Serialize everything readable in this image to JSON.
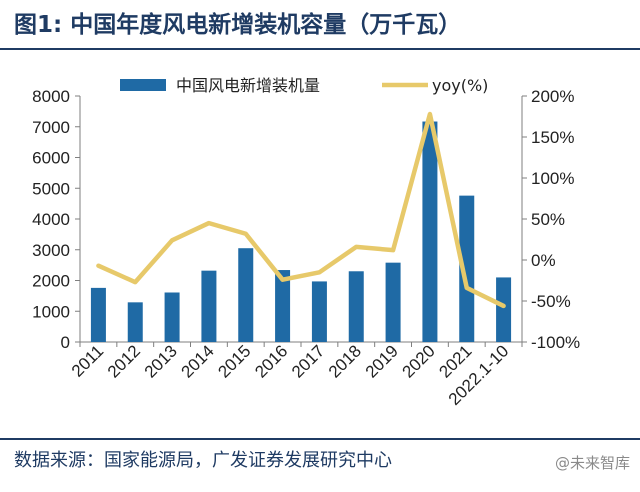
{
  "header": {
    "figure_number": "图1:",
    "title": "中国年度风电新增装机容量（万千瓦）"
  },
  "footer": {
    "source": "数据来源：国家能源局，广发证券发展研究中心",
    "watermark": "@未来智库"
  },
  "chart_data": {
    "type": "bar",
    "categories": [
      "2011",
      "2012",
      "2013",
      "2014",
      "2015",
      "2016",
      "2017",
      "2018",
      "2019",
      "2020",
      "2021",
      "2022.1-10"
    ],
    "series": [
      {
        "name": "中国风电新增装机量",
        "type": "bar",
        "axis": "left",
        "color": "#1f6aa5",
        "values": [
          1760,
          1290,
          1610,
          2320,
          3050,
          2340,
          1970,
          2300,
          2580,
          7170,
          4760,
          2100
        ]
      },
      {
        "name": "yoy(%)",
        "type": "line",
        "axis": "right",
        "color": "#e7c96a",
        "values": [
          -7,
          -27,
          24,
          45,
          32,
          -24,
          -15,
          16,
          12,
          178,
          -34,
          -56
        ]
      }
    ],
    "y_left": {
      "min": 0,
      "max": 8000,
      "ticks": [
        "0",
        "1000",
        "2000",
        "3000",
        "4000",
        "5000",
        "6000",
        "7000",
        "8000"
      ]
    },
    "y_right": {
      "min": -100,
      "max": 200,
      "ticks": [
        "-100%",
        "-50%",
        "0%",
        "50%",
        "100%",
        "150%",
        "200%"
      ]
    },
    "legend_position": "top",
    "grid": false
  }
}
